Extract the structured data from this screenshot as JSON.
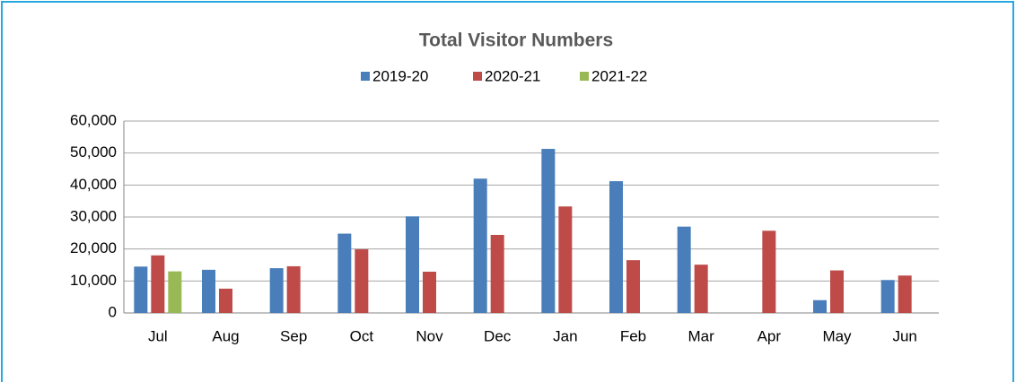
{
  "chart_data": {
    "type": "bar",
    "title": "Total Visitor Numbers",
    "categories": [
      "Jul",
      "Aug",
      "Sep",
      "Oct",
      "Nov",
      "Dec",
      "Jan",
      "Feb",
      "Mar",
      "Apr",
      "May",
      "Jun"
    ],
    "series": [
      {
        "name": "2019-20",
        "color": "#4a7ebb",
        "values": [
          14500,
          13500,
          14000,
          24800,
          30200,
          42000,
          51300,
          41200,
          27000,
          null,
          4000,
          10300
        ]
      },
      {
        "name": "2020-21",
        "color": "#be4b48",
        "values": [
          18000,
          7600,
          14600,
          19900,
          12900,
          24400,
          33300,
          16500,
          15100,
          25700,
          13300,
          11700
        ]
      },
      {
        "name": "2021-22",
        "color": "#98b954",
        "values": [
          13000,
          null,
          null,
          null,
          null,
          null,
          null,
          null,
          null,
          null,
          null,
          null
        ]
      }
    ],
    "ylim": [
      0,
      60000
    ],
    "yticks": [
      0,
      {
        "value": 10000,
        "label": "10,000"
      },
      {
        "value": 20000,
        "label": "20,000"
      },
      {
        "value": 30000,
        "label": "30,000"
      },
      {
        "value": 40000,
        "label": "40,000"
      },
      {
        "value": 50000,
        "label": "50,000"
      },
      {
        "value": 60000,
        "label": "60,000"
      }
    ],
    "grid": true,
    "legend": "top"
  }
}
